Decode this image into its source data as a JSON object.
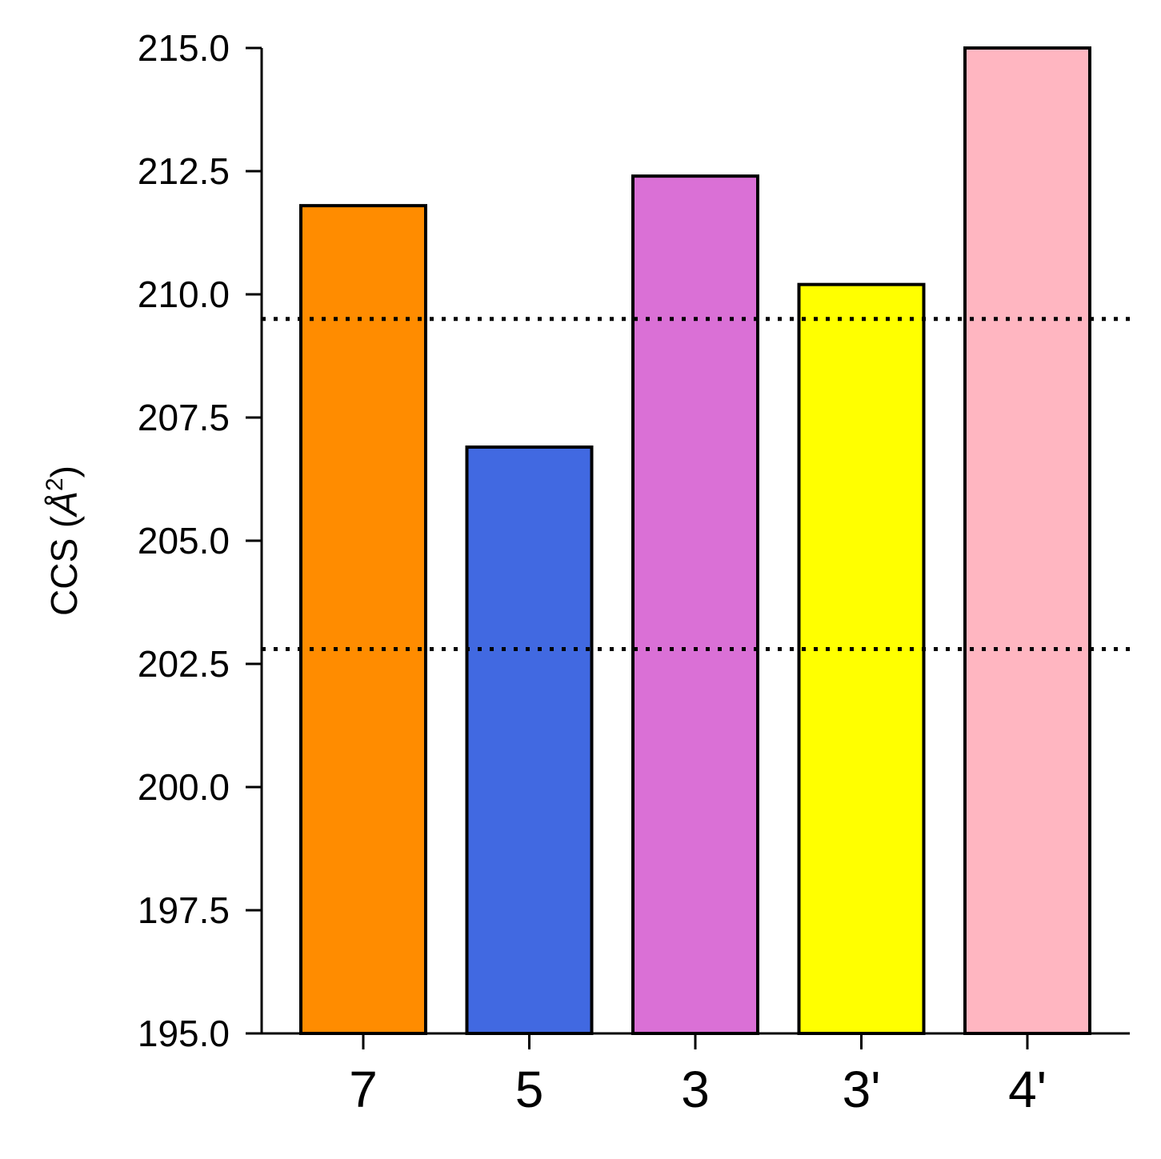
{
  "chart_data": {
    "type": "bar",
    "title": "",
    "xlabel": "",
    "ylabel": "CCS (Å²)",
    "ylabel_parts": {
      "prefix": "CCS (",
      "symbol": "Å",
      "superscript": "2",
      "suffix": ")"
    },
    "categories": [
      "7",
      "5",
      "3",
      "3'",
      "4'"
    ],
    "values": [
      211.8,
      206.9,
      212.4,
      210.2,
      215.0
    ],
    "colors": [
      "#ff8c00",
      "#4169e1",
      "#da70d6",
      "#ffff00",
      "#ffb6c1"
    ],
    "edge_color": "#000000",
    "ylim": [
      195.0,
      215.0
    ],
    "yticks": [
      195.0,
      197.5,
      200.0,
      202.5,
      205.0,
      207.5,
      210.0,
      212.5,
      215.0
    ],
    "ytick_labels": [
      "195.0",
      "197.5",
      "200.0",
      "202.5",
      "205.0",
      "207.5",
      "210.0",
      "212.5",
      "215.0"
    ],
    "reference_lines": [
      {
        "y": 209.5,
        "style": "dotted",
        "color": "#000000"
      },
      {
        "y": 202.8,
        "style": "dotted",
        "color": "#000000"
      }
    ],
    "grid": false,
    "legend": "none"
  }
}
